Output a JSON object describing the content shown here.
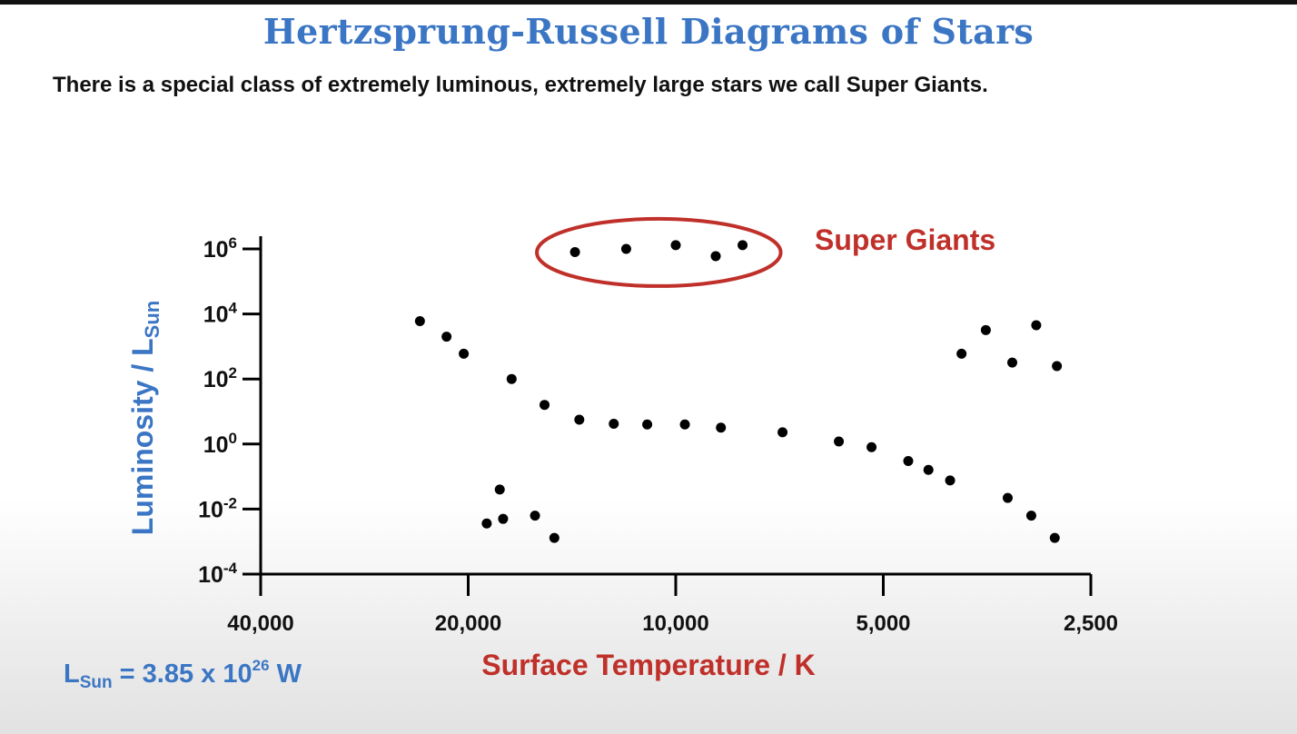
{
  "title": "Hertzsprung-Russell Diagrams of Stars",
  "subtitle": "There is a special class of extremely luminous, extremely large stars we call Super Giants.",
  "lsun_note": {
    "l": "L",
    "sub": "Sun",
    "eq": " = 3.85 x 10",
    "exp": "26",
    "unit": " W"
  },
  "colors": {
    "title": "#3b76c4",
    "ylabel": "#3b76c4",
    "xlabel": "#c0302a",
    "highlight": "#c0302a",
    "points": "#000000"
  },
  "chart_data": {
    "type": "scatter",
    "xlabel": "Surface Temperature / K",
    "ylabel": {
      "main": "Luminosity / L",
      "sub": "Sun"
    },
    "x_scale": "log",
    "x_reversed": true,
    "y_scale": "log",
    "xlim": [
      40000,
      2500
    ],
    "ylim": [
      0.0001,
      1000000
    ],
    "xticks": [
      {
        "value": 40000,
        "label": "40,000"
      },
      {
        "value": 20000,
        "label": "20,000"
      },
      {
        "value": 10000,
        "label": "10,000"
      },
      {
        "value": 5000,
        "label": "5,000"
      },
      {
        "value": 2500,
        "label": "2,500"
      }
    ],
    "yticks": [
      {
        "value": 1000000,
        "base": "10",
        "exp": "6"
      },
      {
        "value": 10000,
        "base": "10",
        "exp": "4"
      },
      {
        "value": 100,
        "base": "10",
        "exp": "2"
      },
      {
        "value": 1,
        "base": "10",
        "exp": "0"
      },
      {
        "value": 0.01,
        "base": "10",
        "exp": "-2"
      },
      {
        "value": 0.0001,
        "base": "10",
        "exp": "-4"
      }
    ],
    "points": [
      {
        "x": 14000,
        "y": 800000
      },
      {
        "x": 11800,
        "y": 1000000
      },
      {
        "x": 10000,
        "y": 1300000
      },
      {
        "x": 8750,
        "y": 600000
      },
      {
        "x": 8000,
        "y": 1300000
      },
      {
        "x": 23500,
        "y": 6000
      },
      {
        "x": 21500,
        "y": 2000
      },
      {
        "x": 20300,
        "y": 600
      },
      {
        "x": 17300,
        "y": 100
      },
      {
        "x": 15500,
        "y": 16
      },
      {
        "x": 13800,
        "y": 5.6
      },
      {
        "x": 12300,
        "y": 4.2
      },
      {
        "x": 11000,
        "y": 4.0
      },
      {
        "x": 9700,
        "y": 4.0
      },
      {
        "x": 8600,
        "y": 3.2
      },
      {
        "x": 7000,
        "y": 2.3
      },
      {
        "x": 5800,
        "y": 1.2
      },
      {
        "x": 5200,
        "y": 0.8
      },
      {
        "x": 4600,
        "y": 0.3
      },
      {
        "x": 4300,
        "y": 0.16
      },
      {
        "x": 4000,
        "y": 0.076
      },
      {
        "x": 3300,
        "y": 0.022
      },
      {
        "x": 3050,
        "y": 0.0063
      },
      {
        "x": 2820,
        "y": 0.0013
      },
      {
        "x": 18000,
        "y": 0.04
      },
      {
        "x": 18800,
        "y": 0.0036
      },
      {
        "x": 17800,
        "y": 0.005
      },
      {
        "x": 16000,
        "y": 0.0063
      },
      {
        "x": 15000,
        "y": 0.0013
      },
      {
        "x": 3850,
        "y": 600
      },
      {
        "x": 3550,
        "y": 3200
      },
      {
        "x": 3250,
        "y": 320
      },
      {
        "x": 3000,
        "y": 4500
      },
      {
        "x": 2800,
        "y": 250
      }
    ],
    "annotations": [
      {
        "label": "Super Giants"
      }
    ]
  }
}
